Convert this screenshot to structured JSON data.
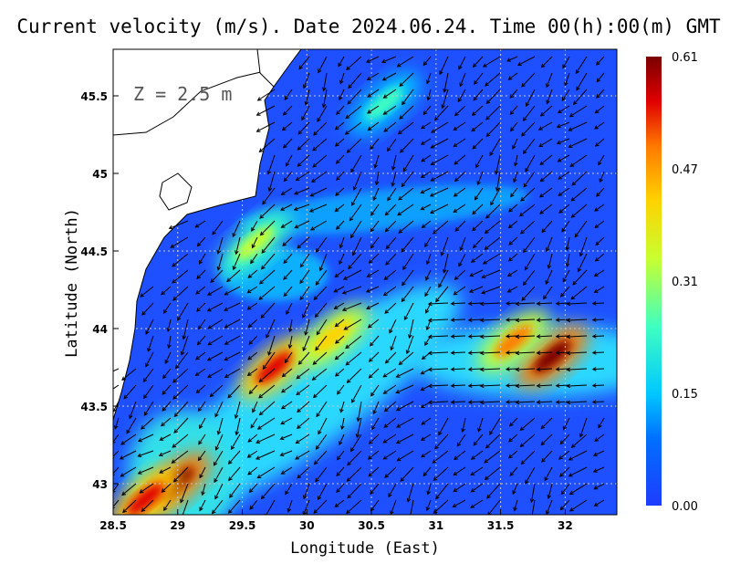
{
  "chart_data": {
    "type": "heatmap",
    "title": "Current velocity (m/s). Date 2024.06.24. Time 00(h):00(m) GMT",
    "xlabel": "Longitude (East)",
    "ylabel": "Latitude (North)",
    "annotation": "Z = 2.5 m",
    "xlim": [
      28.5,
      32.4
    ],
    "ylim": [
      42.8,
      45.8
    ],
    "x_ticks": [
      {
        "value": 28.5,
        "label": "28.5"
      },
      {
        "value": 29,
        "label": "29"
      },
      {
        "value": 29.5,
        "label": "29.5"
      },
      {
        "value": 30,
        "label": "30"
      },
      {
        "value": 30.5,
        "label": "30.5"
      },
      {
        "value": 31,
        "label": "31"
      },
      {
        "value": 31.5,
        "label": "31.5"
      },
      {
        "value": 32,
        "label": "32"
      }
    ],
    "y_ticks": [
      {
        "value": 43,
        "label": "43"
      },
      {
        "value": 43.5,
        "label": "43.5"
      },
      {
        "value": 44,
        "label": "44"
      },
      {
        "value": 44.5,
        "label": "44.5"
      },
      {
        "value": 45,
        "label": "45"
      },
      {
        "value": 45.5,
        "label": "45.5"
      }
    ],
    "grid": true,
    "colorbar": {
      "position": "right",
      "min": 0,
      "max": 0.61,
      "ticks": [
        "0.61",
        "0.47",
        "0.31",
        "0.15",
        "0.00"
      ],
      "colors": [
        "#7a0000",
        "#e00000",
        "#ff7a00",
        "#ffd200",
        "#c8ff30",
        "#40ffc0",
        "#00c8ff",
        "#0070ff",
        "#1e3cff"
      ]
    },
    "speed_hotspots": [
      {
        "lon": 29.75,
        "lat": 43.75,
        "speed": 0.55
      },
      {
        "lon": 30.2,
        "lat": 43.95,
        "speed": 0.4
      },
      {
        "lon": 31.9,
        "lat": 43.82,
        "speed": 0.6
      },
      {
        "lon": 31.6,
        "lat": 43.92,
        "speed": 0.48
      },
      {
        "lon": 28.98,
        "lat": 43.0,
        "speed": 0.6
      },
      {
        "lon": 28.75,
        "lat": 42.9,
        "speed": 0.5
      },
      {
        "lon": 30.6,
        "lat": 45.45,
        "speed": 0.25
      },
      {
        "lon": 29.6,
        "lat": 44.55,
        "speed": 0.32
      }
    ],
    "coastline": "Black Sea western coast (Romania/Bulgaria)"
  }
}
